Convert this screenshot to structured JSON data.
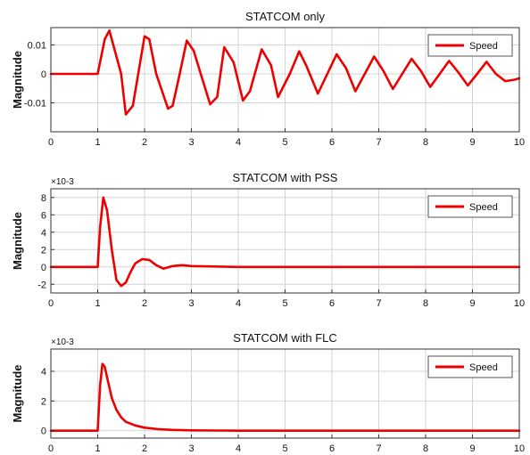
{
  "chart_data": [
    {
      "type": "line",
      "title": "STATCOM only",
      "ylabel": "Magnitude",
      "xlabel": "",
      "xlim": [
        0,
        10
      ],
      "ylim": [
        -0.02,
        0.016
      ],
      "x_ticks": [
        0,
        1,
        2,
        3,
        4,
        5,
        6,
        7,
        8,
        9,
        10
      ],
      "y_ticks": [
        -0.01,
        0,
        0.01
      ],
      "y_tick_labels": [
        "-0.01",
        "0",
        "0.01"
      ],
      "y_exponent": "",
      "grid": true,
      "legend": {
        "position": "top-right",
        "entries": [
          "Speed"
        ]
      },
      "series": [
        {
          "name": "Speed",
          "color": "#ee0000",
          "x": [
            0,
            1.0,
            1.15,
            1.25,
            1.5,
            1.6,
            1.75,
            2.0,
            2.1,
            2.25,
            2.5,
            2.6,
            2.75,
            2.9,
            3.05,
            3.2,
            3.4,
            3.55,
            3.7,
            3.9,
            4.1,
            4.25,
            4.5,
            4.7,
            4.85,
            5.1,
            5.3,
            5.45,
            5.7,
            5.9,
            6.1,
            6.3,
            6.5,
            6.7,
            6.9,
            7.1,
            7.3,
            7.5,
            7.7,
            7.9,
            8.1,
            8.3,
            8.5,
            8.7,
            8.9,
            9.1,
            9.3,
            9.5,
            9.7,
            9.9,
            10.0
          ],
          "y": [
            0,
            0,
            0.012,
            0.015,
            0.0,
            -0.014,
            -0.011,
            0.013,
            0.012,
            0.0,
            -0.012,
            -0.011,
            0.0,
            0.0115,
            0.008,
            0.0,
            -0.0105,
            -0.008,
            0.0092,
            0.004,
            -0.0092,
            -0.006,
            0.0085,
            0.003,
            -0.008,
            0.0,
            0.0078,
            0.003,
            -0.0068,
            0.0,
            0.0068,
            0.002,
            -0.006,
            0.0,
            0.006,
            0.001,
            -0.0052,
            0.0,
            0.0052,
            0.001,
            -0.0045,
            0.0,
            0.0045,
            0.0005,
            -0.004,
            0.0,
            0.0042,
            0.0,
            -0.0025,
            -0.002,
            -0.0015
          ]
        }
      ]
    },
    {
      "type": "line",
      "title": "STATCOM with PSS",
      "ylabel": "Magnitude",
      "xlabel": "",
      "xlim": [
        0,
        10
      ],
      "ylim": [
        -3,
        9
      ],
      "x_ticks": [
        0,
        1,
        2,
        3,
        4,
        5,
        6,
        7,
        8,
        9,
        10
      ],
      "y_ticks": [
        -2,
        0,
        2,
        4,
        6,
        8
      ],
      "y_tick_labels": [
        "-2",
        "0",
        "2",
        "4",
        "6",
        "8"
      ],
      "y_exponent": "×10-3",
      "grid": true,
      "legend": {
        "position": "top-right",
        "entries": [
          "Speed"
        ]
      },
      "series": [
        {
          "name": "Speed",
          "color": "#ee0000",
          "x": [
            0,
            1.0,
            1.05,
            1.12,
            1.2,
            1.3,
            1.4,
            1.5,
            1.6,
            1.7,
            1.8,
            1.95,
            2.1,
            2.25,
            2.4,
            2.6,
            2.8,
            3.0,
            3.5,
            4.0,
            10.0
          ],
          "y": [
            0,
            0,
            4.5,
            8.0,
            6.5,
            2.0,
            -1.5,
            -2.2,
            -1.8,
            -0.6,
            0.4,
            0.9,
            0.8,
            0.2,
            -0.2,
            0.1,
            0.2,
            0.1,
            0.05,
            0,
            0
          ]
        }
      ]
    },
    {
      "type": "line",
      "title": "STATCOM with FLC",
      "ylabel": "Magnitude",
      "xlabel": "",
      "xlim": [
        0,
        10
      ],
      "ylim": [
        -0.5,
        5.5
      ],
      "x_ticks": [
        0,
        1,
        2,
        3,
        4,
        5,
        6,
        7,
        8,
        9,
        10
      ],
      "y_ticks": [
        0,
        2,
        4
      ],
      "y_tick_labels": [
        "0",
        "2",
        "4"
      ],
      "y_exponent": "×10-3",
      "grid": true,
      "legend": {
        "position": "top-right",
        "entries": [
          "Speed"
        ]
      },
      "series": [
        {
          "name": "Speed",
          "color": "#ee0000",
          "x": [
            0,
            1.0,
            1.05,
            1.1,
            1.15,
            1.2,
            1.3,
            1.4,
            1.5,
            1.6,
            1.8,
            2.0,
            2.3,
            2.6,
            3.0,
            3.5,
            4.0,
            10.0
          ],
          "y": [
            0,
            0,
            3.0,
            4.5,
            4.3,
            3.6,
            2.2,
            1.4,
            0.9,
            0.6,
            0.35,
            0.2,
            0.1,
            0.05,
            0.02,
            0.01,
            0,
            0
          ]
        }
      ]
    }
  ]
}
